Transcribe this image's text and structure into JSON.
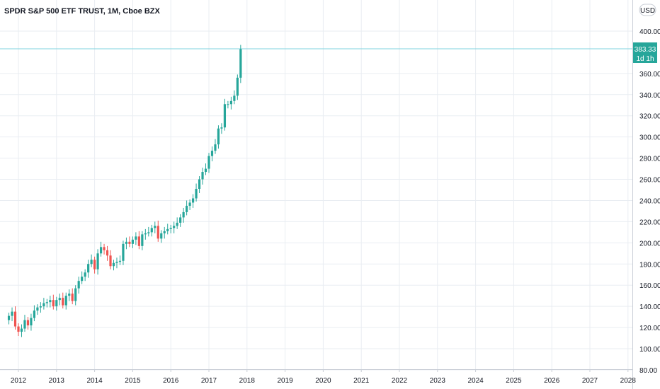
{
  "header": {
    "title": "SPDR S&P 500 ETF TRUST, 1M, Cboe BZX"
  },
  "currency_label": "USD",
  "last_price_tag": {
    "price": "383.33",
    "countdown": "1d 1h"
  },
  "colors": {
    "up": "#26a69a",
    "down": "#ef5350",
    "grid": "#e9edf2",
    "price_line": "#7fd3df",
    "tag_bg": "#26a69a"
  },
  "chart_data": {
    "type": "candlestick",
    "title": "SPDR S&P 500 ETF TRUST, 1M, Cboe BZX",
    "ylim": [
      80,
      420
    ],
    "xlim": [
      2011.75,
      2028.0
    ],
    "y_ticks": [
      "80.00",
      "100.00",
      "120.00",
      "140.00",
      "160.00",
      "180.00",
      "200.00",
      "220.00",
      "240.00",
      "260.00",
      "280.00",
      "300.00",
      "320.00",
      "340.00",
      "360.00",
      "400.00"
    ],
    "x_ticks": [
      "2012",
      "2013",
      "2014",
      "2015",
      "2016",
      "2017",
      "2018",
      "2019",
      "2020",
      "2021",
      "2022",
      "2023",
      "2024",
      "2025",
      "2026",
      "2027",
      "2028"
    ],
    "last_price": 383.33,
    "grid": true,
    "closes": [
      131,
      135,
      121,
      116,
      119,
      127,
      122,
      129,
      136,
      139,
      140,
      143,
      144,
      146,
      140,
      146,
      148,
      141,
      150,
      152,
      145,
      157,
      164,
      168,
      172,
      180,
      184,
      175,
      190,
      196,
      193,
      188,
      178,
      181,
      182,
      183,
      199,
      201,
      199,
      203,
      206,
      197,
      208,
      209,
      210,
      214,
      216,
      204,
      209,
      211,
      213,
      214,
      216,
      219,
      224,
      229,
      235,
      238,
      242,
      251,
      260,
      267,
      270,
      282,
      287,
      293,
      308,
      309,
      331,
      331,
      334,
      339,
      356,
      383
    ]
  }
}
